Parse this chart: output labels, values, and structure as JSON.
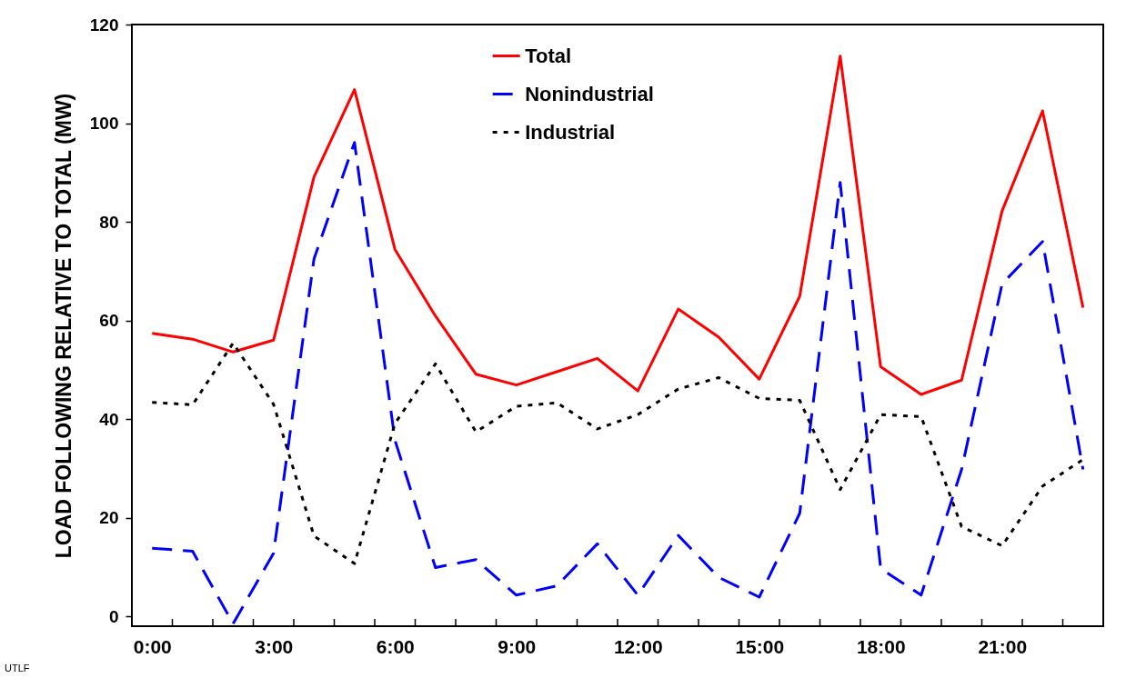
{
  "chart_data": {
    "type": "line",
    "ylabel": "LOAD FOLLOWING RELATIVE TO TOTAL (MW)",
    "x": [
      0,
      1,
      2,
      3,
      4,
      5,
      6,
      7,
      8,
      9,
      10,
      11,
      12,
      13,
      14,
      15,
      16,
      17,
      18,
      19,
      20,
      21,
      22,
      23
    ],
    "xlim": [
      -0.5,
      23.5
    ],
    "xticks": [
      {
        "value": 0,
        "label": "0:00"
      },
      {
        "value": 3,
        "label": "3:00"
      },
      {
        "value": 6,
        "label": "6:00"
      },
      {
        "value": 9,
        "label": "9:00"
      },
      {
        "value": 12,
        "label": "12:00"
      },
      {
        "value": 15,
        "label": "15:00"
      },
      {
        "value": 18,
        "label": "18:00"
      },
      {
        "value": 21,
        "label": "21:00"
      },
      {
        "value": 0.5,
        "label": null
      },
      {
        "value": 1.5,
        "label": null
      },
      {
        "value": 2.5,
        "label": null
      },
      {
        "value": 3.5,
        "label": null
      },
      {
        "value": 4.5,
        "label": null
      },
      {
        "value": 5.5,
        "label": null
      },
      {
        "value": 6.5,
        "label": null
      },
      {
        "value": 7.5,
        "label": null
      },
      {
        "value": 8.5,
        "label": null
      },
      {
        "value": 9.5,
        "label": null
      },
      {
        "value": 10.5,
        "label": null
      },
      {
        "value": 11.5,
        "label": null
      },
      {
        "value": 12.5,
        "label": null
      },
      {
        "value": 13.5,
        "label": null
      },
      {
        "value": 14.5,
        "label": null
      },
      {
        "value": 15.5,
        "label": null
      },
      {
        "value": 16.5,
        "label": null
      },
      {
        "value": 17.5,
        "label": null
      },
      {
        "value": 18.5,
        "label": null
      },
      {
        "value": 19.5,
        "label": null
      },
      {
        "value": 20.5,
        "label": null
      },
      {
        "value": 21.5,
        "label": null
      },
      {
        "value": 22.5,
        "label": null
      }
    ],
    "ylim": [
      -2,
      120
    ],
    "yticks": [
      0,
      20,
      40,
      60,
      80,
      100,
      120
    ],
    "grid": false,
    "legend": "top",
    "marker": "none",
    "series": [
      {
        "name": "Total",
        "color": "#ff0000",
        "line_style": "solid",
        "values": [
          57.4,
          56.2,
          53.6,
          56,
          89.1,
          106.8,
          74.4,
          60.9,
          49.1,
          46.9,
          49.6,
          52.3,
          45.7,
          62.3,
          56.6,
          48.1,
          64.9,
          113.6,
          50.6,
          45,
          47.9,
          82.2,
          102.5,
          62.6
        ]
      },
      {
        "name": "Nonindustrial",
        "color": "#0000ff",
        "line_style": "dashed",
        "values": [
          13.8,
          13.2,
          -1.5,
          12.8,
          72.5,
          96.1,
          35.7,
          9.9,
          11.5,
          4.3,
          6.2,
          14.7,
          4.3,
          16.4,
          7.9,
          3.9,
          20.9,
          88,
          9.7,
          4.3,
          29.8,
          67.4,
          76,
          29.8
        ]
      },
      {
        "name": "Industrial",
        "color": "#000000",
        "line_style": "dotted",
        "values": [
          43.4,
          42.9,
          55.4,
          43,
          16.3,
          10.7,
          39.1,
          51.2,
          37.4,
          42.6,
          43.3,
          38,
          40.9,
          46.1,
          48.4,
          44.2,
          43.8,
          25.7,
          40.9,
          40.5,
          18.2,
          14.3,
          26.4,
          31.8
        ]
      }
    ],
    "annotations": [
      "UTLF"
    ]
  }
}
